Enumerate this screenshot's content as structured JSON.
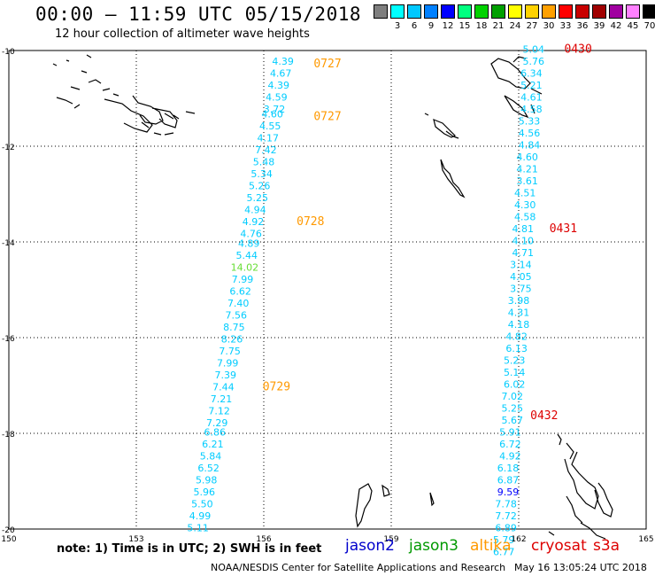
{
  "title": "00:00 – 11:59 UTC 05/15/2018",
  "subtitle": "12 hour collection of altimeter wave heights",
  "colorbar": {
    "unit": "(ft)",
    "bins": [
      {
        "label": "",
        "color": "#7f7f7f"
      },
      {
        "label": "3",
        "color": "#00ffff"
      },
      {
        "label": "6",
        "color": "#00c8ff"
      },
      {
        "label": "9",
        "color": "#0080ff"
      },
      {
        "label": "12",
        "color": "#0000ff"
      },
      {
        "label": "15",
        "color": "#00ff80"
      },
      {
        "label": "18",
        "color": "#00d200"
      },
      {
        "label": "21",
        "color": "#00a000"
      },
      {
        "label": "24",
        "color": "#ffff00"
      },
      {
        "label": "27",
        "color": "#ffd200"
      },
      {
        "label": "30",
        "color": "#ffa000"
      },
      {
        "label": "33",
        "color": "#ff0000"
      },
      {
        "label": "36",
        "color": "#c80000"
      },
      {
        "label": "39",
        "color": "#a00000"
      },
      {
        "label": "42",
        "color": "#a000a0"
      },
      {
        "label": "45",
        "color": "#ff80ff"
      },
      {
        "label": "70",
        "color": "#000000"
      }
    ]
  },
  "axes": {
    "lon_ticks": [
      150,
      153,
      156,
      159,
      162,
      165
    ],
    "lat_ticks": [
      -10,
      -12,
      -14,
      -16,
      -18,
      -20
    ],
    "lon_range": [
      150,
      165
    ],
    "lat_range": [
      -20,
      -10
    ]
  },
  "tracks": [
    {
      "satellite": "altika",
      "color": "#00ccff",
      "points": [
        {
          "lon": 156.45,
          "lat": -10.3,
          "swh": "4.39"
        },
        {
          "lon": 156.4,
          "lat": -10.55,
          "swh": "4.67"
        },
        {
          "lon": 156.35,
          "lat": -10.8,
          "swh": "4.39"
        },
        {
          "lon": 156.3,
          "lat": -11.05,
          "swh": "4.59"
        },
        {
          "lon": 156.25,
          "lat": -11.3,
          "swh": "3.72"
        },
        {
          "lon": 156.2,
          "lat": -11.4,
          "swh": "4.60"
        },
        {
          "lon": 156.15,
          "lat": -11.65,
          "swh": "4.55"
        },
        {
          "lon": 156.1,
          "lat": -11.9,
          "swh": "4.17"
        },
        {
          "lon": 156.05,
          "lat": -12.15,
          "swh": "7.42"
        },
        {
          "lon": 156.0,
          "lat": -12.4,
          "swh": "5.48"
        },
        {
          "lon": 155.95,
          "lat": -12.65,
          "swh": "5.34"
        },
        {
          "lon": 155.9,
          "lat": -12.9,
          "swh": "5.26"
        },
        {
          "lon": 155.85,
          "lat": -13.15,
          "swh": "5.25"
        },
        {
          "lon": 155.8,
          "lat": -13.4,
          "swh": "4.94"
        },
        {
          "lon": 155.75,
          "lat": -13.65,
          "swh": "4.92"
        },
        {
          "lon": 155.7,
          "lat": -13.9,
          "swh": "4.76"
        },
        {
          "lon": 155.65,
          "lat": -14.1,
          "swh": "4.89"
        },
        {
          "lon": 155.6,
          "lat": -14.35,
          "swh": "5.44"
        },
        {
          "lon": 155.55,
          "lat": -14.6,
          "swh": "14.02"
        },
        {
          "lon": 155.5,
          "lat": -14.85,
          "swh": "7.99"
        },
        {
          "lon": 155.45,
          "lat": -15.1,
          "swh": "6.62"
        },
        {
          "lon": 155.4,
          "lat": -15.35,
          "swh": "7.40"
        },
        {
          "lon": 155.35,
          "lat": -15.6,
          "swh": "7.56"
        },
        {
          "lon": 155.3,
          "lat": -15.85,
          "swh": "8.75"
        },
        {
          "lon": 155.25,
          "lat": -16.1,
          "swh": "8.26"
        },
        {
          "lon": 155.2,
          "lat": -16.35,
          "swh": "7.75"
        },
        {
          "lon": 155.15,
          "lat": -16.6,
          "swh": "7.99"
        },
        {
          "lon": 155.1,
          "lat": -16.85,
          "swh": "7.39"
        },
        {
          "lon": 155.05,
          "lat": -17.1,
          "swh": "7.44"
        },
        {
          "lon": 155.0,
          "lat": -17.35,
          "swh": "7.21"
        },
        {
          "lon": 154.95,
          "lat": -17.6,
          "swh": "7.12"
        },
        {
          "lon": 154.9,
          "lat": -17.85,
          "swh": "7.29"
        },
        {
          "lon": 154.85,
          "lat": -18.05,
          "swh": "6.86"
        },
        {
          "lon": 154.8,
          "lat": -18.3,
          "swh": "6.21"
        },
        {
          "lon": 154.75,
          "lat": -18.55,
          "swh": "5.84"
        },
        {
          "lon": 154.7,
          "lat": -18.8,
          "swh": "6.52"
        },
        {
          "lon": 154.65,
          "lat": -19.05,
          "swh": "5.98"
        },
        {
          "lon": 154.6,
          "lat": -19.3,
          "swh": "5.96"
        },
        {
          "lon": 154.55,
          "lat": -19.55,
          "swh": "5.50"
        },
        {
          "lon": 154.5,
          "lat": -19.8,
          "swh": "4.99"
        },
        {
          "lon": 154.45,
          "lat": -20.05,
          "swh": "5.11"
        }
      ],
      "times": [
        {
          "lon": 157.5,
          "lat": -10.35,
          "label": "0727"
        },
        {
          "lon": 157.5,
          "lat": -11.45,
          "label": "0727"
        },
        {
          "lon": 157.1,
          "lat": -13.65,
          "label": "0728"
        },
        {
          "lon": 156.3,
          "lat": -17.1,
          "label": "0729"
        }
      ]
    },
    {
      "satellite": "cryosat",
      "color": "#00ccff",
      "points": [
        {
          "lon": 162.35,
          "lat": -10.05,
          "swh": "5.04"
        },
        {
          "lon": 162.35,
          "lat": -10.3,
          "swh": "5.76"
        },
        {
          "lon": 162.3,
          "lat": -10.55,
          "swh": "6.34"
        },
        {
          "lon": 162.3,
          "lat": -10.8,
          "swh": "5.21"
        },
        {
          "lon": 162.3,
          "lat": -11.05,
          "swh": "4.61"
        },
        {
          "lon": 162.3,
          "lat": -11.3,
          "swh": "4.58"
        },
        {
          "lon": 162.25,
          "lat": -11.55,
          "swh": "5.33"
        },
        {
          "lon": 162.25,
          "lat": -11.8,
          "swh": "4.56"
        },
        {
          "lon": 162.25,
          "lat": -12.05,
          "swh": "4.84"
        },
        {
          "lon": 162.2,
          "lat": -12.3,
          "swh": "4.60"
        },
        {
          "lon": 162.2,
          "lat": -12.55,
          "swh": "4.21"
        },
        {
          "lon": 162.2,
          "lat": -12.8,
          "swh": "3.61"
        },
        {
          "lon": 162.15,
          "lat": -13.05,
          "swh": "4.51"
        },
        {
          "lon": 162.15,
          "lat": -13.3,
          "swh": "4.30"
        },
        {
          "lon": 162.15,
          "lat": -13.55,
          "swh": "4.58"
        },
        {
          "lon": 162.1,
          "lat": -13.8,
          "swh": "4.81"
        },
        {
          "lon": 162.1,
          "lat": -14.05,
          "swh": "4.10"
        },
        {
          "lon": 162.1,
          "lat": -14.3,
          "swh": "4.71"
        },
        {
          "lon": 162.05,
          "lat": -14.55,
          "swh": "3.14"
        },
        {
          "lon": 162.05,
          "lat": -14.8,
          "swh": "4.05"
        },
        {
          "lon": 162.05,
          "lat": -15.05,
          "swh": "3.75"
        },
        {
          "lon": 162.0,
          "lat": -15.3,
          "swh": "3.98"
        },
        {
          "lon": 162.0,
          "lat": -15.55,
          "swh": "4.31"
        },
        {
          "lon": 162.0,
          "lat": -15.8,
          "swh": "4.18"
        },
        {
          "lon": 161.95,
          "lat": -16.05,
          "swh": "4.82"
        },
        {
          "lon": 161.95,
          "lat": -16.3,
          "swh": "6.13"
        },
        {
          "lon": 161.9,
          "lat": -16.55,
          "swh": "5.23"
        },
        {
          "lon": 161.9,
          "lat": -16.8,
          "swh": "5.14"
        },
        {
          "lon": 161.9,
          "lat": -17.05,
          "swh": "6.02"
        },
        {
          "lon": 161.85,
          "lat": -17.3,
          "swh": "7.02"
        },
        {
          "lon": 161.85,
          "lat": -17.55,
          "swh": "5.25"
        },
        {
          "lon": 161.85,
          "lat": -17.8,
          "swh": "5.67"
        },
        {
          "lon": 161.8,
          "lat": -18.05,
          "swh": "5.91"
        },
        {
          "lon": 161.8,
          "lat": -18.3,
          "swh": "6.72"
        },
        {
          "lon": 161.8,
          "lat": -18.55,
          "swh": "4.92"
        },
        {
          "lon": 161.75,
          "lat": -18.8,
          "swh": "6.18"
        },
        {
          "lon": 161.75,
          "lat": -19.05,
          "swh": "6.87"
        },
        {
          "lon": 161.75,
          "lat": -19.3,
          "swh": "9.59"
        },
        {
          "lon": 161.7,
          "lat": -19.55,
          "swh": "7.78"
        },
        {
          "lon": 161.7,
          "lat": -19.8,
          "swh": "7.72"
        },
        {
          "lon": 161.7,
          "lat": -20.05,
          "swh": "6.89"
        },
        {
          "lon": 161.65,
          "lat": -20.3,
          "swh": "5.79"
        },
        {
          "lon": 161.65,
          "lat": -20.55,
          "swh": "6.77"
        }
      ],
      "times": [
        {
          "lon": 163.4,
          "lat": -10.05,
          "label": "0430"
        },
        {
          "lon": 163.05,
          "lat": -13.8,
          "label": "0431"
        },
        {
          "lon": 162.6,
          "lat": -17.7,
          "label": "0432"
        }
      ]
    }
  ],
  "footer": {
    "note": "note: 1) Time is in UTC; 2) SWH is in feet",
    "legend": [
      {
        "name": "jason2",
        "color": "#0000cc"
      },
      {
        "name": "jason3",
        "color": "#009900"
      },
      {
        "name": "altika",
        "color": "#ff9900"
      },
      {
        "name": "cryosat",
        "color": "#dd0000"
      },
      {
        "name": "s3a",
        "color": "#dd0000"
      }
    ],
    "credit": "NOAA/NESDIS Center for Satellite Applications and Research",
    "timestamp": "May 16 13:05:24 UTC 2018"
  }
}
